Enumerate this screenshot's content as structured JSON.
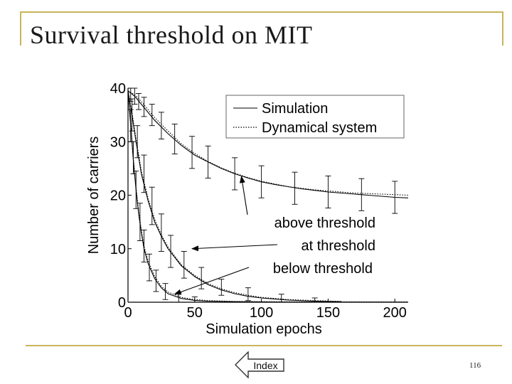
{
  "slide": {
    "title": "Survival threshold on MIT",
    "index_label": "Index",
    "page_number": "116",
    "accent_color": "#c9b45a"
  },
  "chart_data": {
    "type": "line",
    "xlabel": "Simulation epochs",
    "ylabel": "Number of carriers",
    "xlim": [
      0,
      210
    ],
    "ylim": [
      0,
      40
    ],
    "xticks": [
      "0",
      "50",
      "100",
      "150",
      "200"
    ],
    "yticks": [
      "0",
      "10",
      "20",
      "30",
      "40"
    ],
    "legend": {
      "placement": "top-right",
      "entries": [
        "Simulation",
        "Dynamical system"
      ]
    },
    "series": [
      {
        "label": "above threshold",
        "x": [
          0,
          5,
          10,
          20,
          30,
          40,
          50,
          60,
          70,
          80,
          90,
          100,
          110,
          120,
          130,
          140,
          150,
          160,
          170,
          180,
          190,
          200,
          210
        ],
        "simulation": [
          39.5,
          38.5,
          37.0,
          34.0,
          31.5,
          29.3,
          27.5,
          26.2,
          25.0,
          24.0,
          23.2,
          22.5,
          22.0,
          21.6,
          21.2,
          20.9,
          20.6,
          20.4,
          20.2,
          20.0,
          19.8,
          19.6,
          19.5
        ],
        "dynamical_system": [
          39.5,
          38.8,
          37.5,
          34.5,
          32.0,
          29.6,
          27.8,
          26.3,
          25.1,
          24.1,
          23.3,
          22.6,
          22.1,
          21.6,
          21.3,
          21.0,
          20.8,
          20.6,
          20.4,
          20.3,
          20.2,
          20.1,
          20.0
        ],
        "error_bars": [
          {
            "x": 2,
            "y": 39,
            "err": 1.5
          },
          {
            "x": 5,
            "y": 38.5,
            "err": 1.5
          },
          {
            "x": 8,
            "y": 37.5,
            "err": 1.5
          },
          {
            "x": 12,
            "y": 36.5,
            "err": 1.8
          },
          {
            "x": 18,
            "y": 35,
            "err": 2
          },
          {
            "x": 25,
            "y": 33,
            "err": 2.5
          },
          {
            "x": 35,
            "y": 30.5,
            "err": 2.8
          },
          {
            "x": 48,
            "y": 28,
            "err": 3
          },
          {
            "x": 60,
            "y": 26.2,
            "err": 3
          },
          {
            "x": 80,
            "y": 24,
            "err": 3
          },
          {
            "x": 100,
            "y": 22.5,
            "err": 3
          },
          {
            "x": 125,
            "y": 21.3,
            "err": 3
          },
          {
            "x": 150,
            "y": 20.6,
            "err": 3
          },
          {
            "x": 175,
            "y": 20.1,
            "err": 3
          },
          {
            "x": 200,
            "y": 19.6,
            "err": 3
          }
        ]
      },
      {
        "label": "at threshold",
        "x": [
          0,
          3,
          6,
          10,
          15,
          20,
          25,
          30,
          40,
          50,
          60,
          70,
          80,
          90,
          100,
          120,
          140,
          160
        ],
        "simulation": [
          39.5,
          35,
          30,
          24,
          19,
          15,
          12.3,
          10,
          6.8,
          4.8,
          3.3,
          2.3,
          1.6,
          1.1,
          0.8,
          0.4,
          0.2,
          0.1
        ],
        "dynamical_system": [
          39.5,
          35.5,
          30.5,
          24.5,
          19.5,
          15.5,
          12.6,
          10.3,
          7.0,
          5.0,
          3.5,
          2.5,
          1.8,
          1.3,
          0.9,
          0.5,
          0.3,
          0.15
        ],
        "error_bars": [
          {
            "x": 3,
            "y": 35,
            "err": 3
          },
          {
            "x": 7,
            "y": 30,
            "err": 3
          },
          {
            "x": 12,
            "y": 24,
            "err": 3.5
          },
          {
            "x": 18,
            "y": 18,
            "err": 3.5
          },
          {
            "x": 25,
            "y": 13,
            "err": 3.5
          },
          {
            "x": 32,
            "y": 9.5,
            "err": 3
          },
          {
            "x": 42,
            "y": 7,
            "err": 2.5
          },
          {
            "x": 55,
            "y": 4.5,
            "err": 2
          },
          {
            "x": 70,
            "y": 2.8,
            "err": 1.5
          },
          {
            "x": 90,
            "y": 1.5,
            "err": 1.2
          },
          {
            "x": 115,
            "y": 0.7,
            "err": 0.8
          },
          {
            "x": 140,
            "y": 0.3,
            "err": 0.5
          }
        ]
      },
      {
        "label": "below threshold",
        "x": [
          0,
          2,
          4,
          6,
          8,
          10,
          12,
          15,
          20,
          25,
          30,
          40,
          50,
          60,
          80,
          100,
          120,
          150,
          210
        ],
        "simulation": [
          39.5,
          33,
          26.5,
          21,
          16.5,
          13,
          10,
          7.3,
          4.4,
          2.7,
          1.6,
          0.7,
          0.35,
          0.2,
          0.1,
          0.05,
          0.03,
          0.02,
          0.01
        ],
        "dynamical_system": [
          39.5,
          33.5,
          27.0,
          21.5,
          17.0,
          13.5,
          10.5,
          7.8,
          4.8,
          3.0,
          1.9,
          0.9,
          0.5,
          0.3,
          0.15,
          0.1,
          0.08,
          0.06,
          0.05
        ],
        "error_bars": [
          {
            "x": 2,
            "y": 33,
            "err": 3
          },
          {
            "x": 4,
            "y": 27,
            "err": 3
          },
          {
            "x": 6,
            "y": 21,
            "err": 3.5
          },
          {
            "x": 9,
            "y": 15,
            "err": 3.5
          },
          {
            "x": 12,
            "y": 10.5,
            "err": 3
          },
          {
            "x": 16,
            "y": 6.5,
            "err": 2.5
          },
          {
            "x": 21,
            "y": 4,
            "err": 2
          },
          {
            "x": 28,
            "y": 2,
            "err": 1.5
          },
          {
            "x": 38,
            "y": 0.8,
            "err": 1
          },
          {
            "x": 50,
            "y": 0.4,
            "err": 0.6
          }
        ]
      }
    ],
    "annotations": [
      {
        "text": "above threshold",
        "points_to": {
          "x": 85,
          "y": 23.5
        }
      },
      {
        "text": "at threshold",
        "points_to": {
          "x": 48,
          "y": 10
        }
      },
      {
        "text": "below threshold",
        "points_to": {
          "x": 35,
          "y": 1.5
        }
      }
    ]
  }
}
